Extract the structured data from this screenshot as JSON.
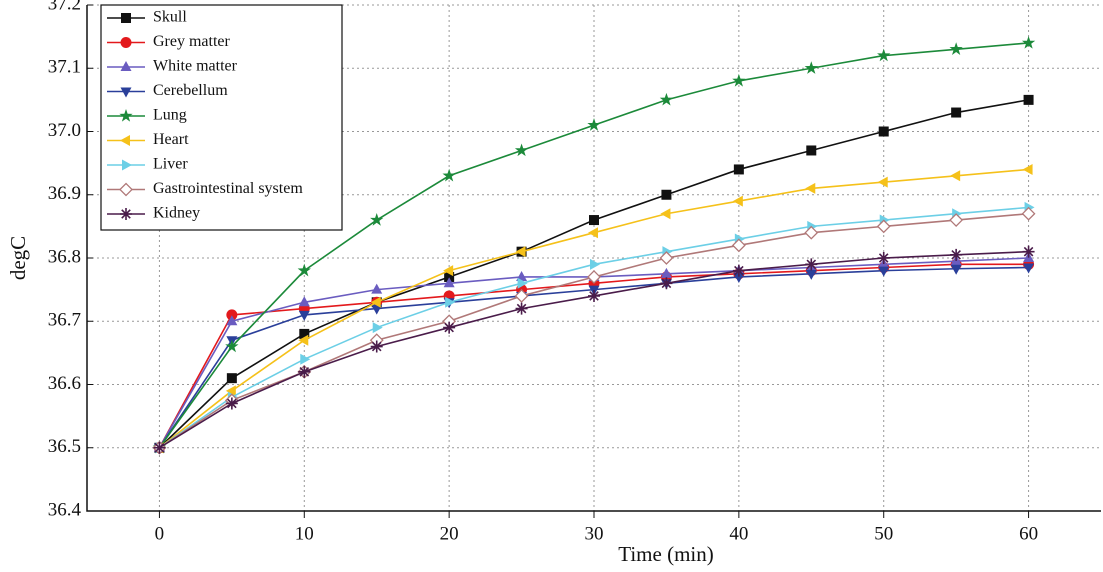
{
  "chart_data": {
    "type": "line",
    "xlabel": "Time (min)",
    "ylabel": "degC",
    "x": [
      0,
      5,
      10,
      15,
      20,
      25,
      30,
      35,
      40,
      45,
      50,
      55,
      60
    ],
    "xlim": [
      -5,
      65
    ],
    "xticks": [
      0,
      10,
      20,
      30,
      40,
      50,
      60
    ],
    "ylim": [
      36.4,
      37.2
    ],
    "yticks": [
      36.4,
      36.5,
      36.6,
      36.7,
      36.8,
      36.9,
      {
        "value": 37,
        "label": "37.0"
      },
      37.1,
      37.2
    ],
    "grid": true,
    "legend": "upper left",
    "series": [
      {
        "name": "Skull",
        "color": "#111111",
        "marker": "square",
        "values": [
          36.5,
          36.61,
          36.68,
          36.73,
          36.77,
          36.81,
          36.86,
          36.9,
          36.94,
          36.97,
          37.0,
          37.03,
          37.05
        ]
      },
      {
        "name": "Grey matter",
        "color": "#e3191c",
        "marker": "circle",
        "values": [
          36.5,
          36.71,
          36.72,
          36.73,
          36.74,
          36.75,
          36.76,
          36.77,
          36.775,
          36.78,
          36.785,
          36.79,
          36.79
        ]
      },
      {
        "name": "White matter",
        "color": "#6a5cc0",
        "marker": "triangle-up",
        "values": [
          36.5,
          36.7,
          36.73,
          36.75,
          36.76,
          36.77,
          36.77,
          36.775,
          36.78,
          36.785,
          36.79,
          36.795,
          36.8
        ]
      },
      {
        "name": "Cerebellum",
        "color": "#2a3f9a",
        "marker": "triangle-down",
        "values": [
          36.5,
          36.67,
          36.71,
          36.72,
          36.73,
          36.74,
          36.75,
          36.76,
          36.77,
          36.775,
          36.78,
          36.783,
          36.785
        ]
      },
      {
        "name": "Lung",
        "color": "#1c8a3a",
        "marker": "star",
        "values": [
          36.5,
          36.66,
          36.78,
          36.86,
          36.93,
          36.97,
          37.01,
          37.05,
          37.08,
          37.1,
          37.12,
          37.13,
          37.14
        ]
      },
      {
        "name": "Heart",
        "color": "#f5c11a",
        "marker": "triangle-left",
        "values": [
          36.5,
          36.59,
          36.67,
          36.73,
          36.78,
          36.81,
          36.84,
          36.87,
          36.89,
          36.91,
          36.92,
          36.93,
          36.94
        ]
      },
      {
        "name": "Liver",
        "color": "#6ccfe6",
        "marker": "triangle-right",
        "values": [
          36.5,
          36.58,
          36.64,
          36.69,
          36.73,
          36.76,
          36.79,
          36.81,
          36.83,
          36.85,
          36.86,
          36.87,
          36.88
        ]
      },
      {
        "name": "Gastrointestinal system",
        "color": "#b07878",
        "marker": "diamond",
        "values": [
          36.5,
          36.575,
          36.62,
          36.67,
          36.7,
          36.74,
          36.77,
          36.8,
          36.82,
          36.84,
          36.85,
          36.86,
          36.87
        ]
      },
      {
        "name": "Kidney",
        "color": "#4a1c4a",
        "marker": "asterisk",
        "values": [
          36.5,
          36.57,
          36.62,
          36.66,
          36.69,
          36.72,
          36.74,
          36.76,
          36.78,
          36.79,
          36.8,
          36.805,
          36.81
        ]
      }
    ]
  }
}
